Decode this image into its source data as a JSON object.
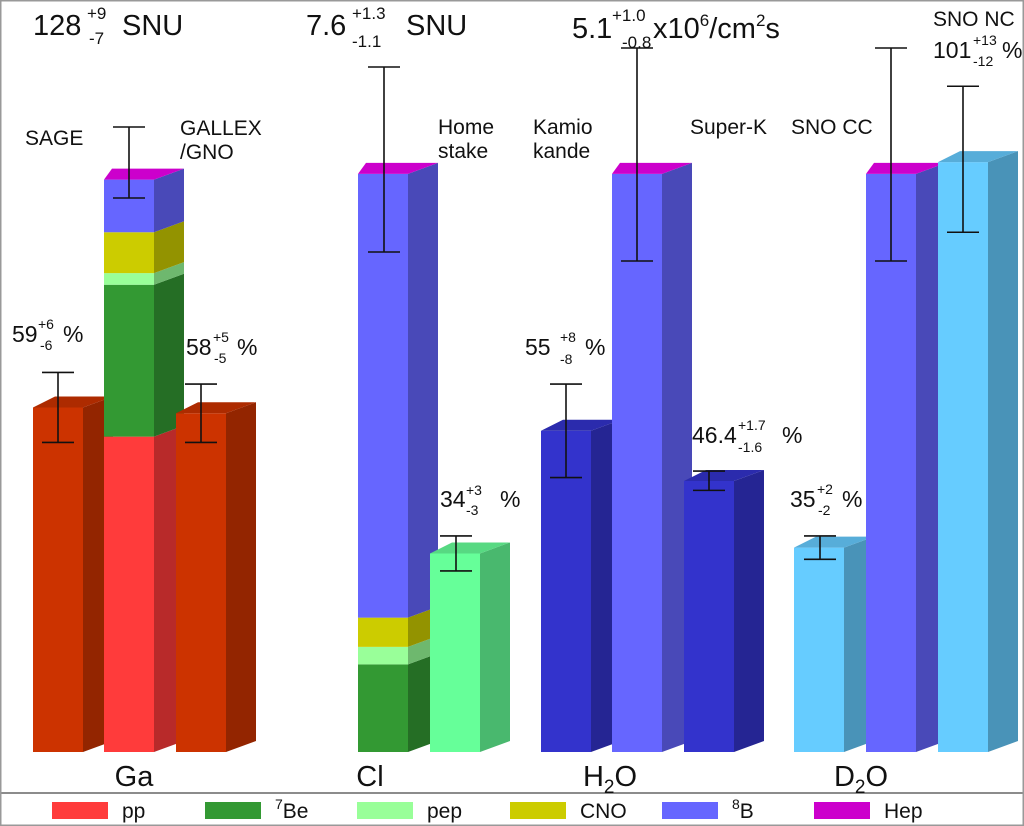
{
  "chart_data": {
    "type": "bar",
    "orientation": "vertical, 3D stacked",
    "groups": [
      {
        "label": "Ga",
        "total": {
          "value": "128",
          "err_up": "+9",
          "err_down": "-7",
          "unit": "SNU"
        },
        "experiments": [
          {
            "name": "SAGE",
            "ratio": {
              "value": "59",
              "err_up": "+6",
              "err_down": "-6",
              "unit": "%"
            },
            "measured_fraction": 0.59
          },
          {
            "name": "GALLEX/GNO",
            "ratio": {
              "value": "58",
              "err_up": "+5",
              "err_down": "-5",
              "unit": "%"
            },
            "measured_fraction": 0.58
          }
        ],
        "prediction_components_fraction": {
          "pp": 0.54,
          "7Be": 0.26,
          "pep": 0.02,
          "CNO": 0.07,
          "8B": 0.09,
          "Hep": 0.02
        }
      },
      {
        "label": "Cl",
        "total": {
          "value": "7.6",
          "err_up": "+1.3",
          "err_down": "-1.1",
          "unit": "SNU"
        },
        "experiments": [
          {
            "name": "Home stake",
            "ratio": {
              "value": "34",
              "err_up": "+3",
              "err_down": "-3",
              "unit": "%"
            },
            "measured_fraction": 0.34
          }
        ],
        "prediction_components_fraction": {
          "7Be": 0.15,
          "pep": 0.03,
          "CNO": 0.05,
          "8B": 0.76,
          "Hep": 0.01
        }
      },
      {
        "label": "H2O",
        "total": {
          "value": "5.1",
          "err_up": "+1.0",
          "err_down": "-0.8",
          "unit": "x10^6/cm^2s"
        },
        "experiments": [
          {
            "name": "Kamiokande",
            "ratio": {
              "value": "55",
              "err_up": "+8",
              "err_down": "-8",
              "unit": "%"
            },
            "measured_fraction": 0.55
          },
          {
            "name": "Super-K",
            "ratio": {
              "value": "46.4",
              "err_up": "+1.7",
              "err_down": "-1.6",
              "unit": "%"
            },
            "measured_fraction": 0.464
          }
        ],
        "prediction_components_fraction": {
          "8B": 0.99,
          "Hep": 0.01
        }
      },
      {
        "label": "D2O",
        "total": null,
        "experiments": [
          {
            "name": "SNO CC",
            "ratio": {
              "value": "35",
              "err_up": "+2",
              "err_down": "-2",
              "unit": "%"
            },
            "measured_fraction": 0.35
          },
          {
            "name": "SNO NC",
            "ratio": {
              "value": "101",
              "err_up": "+13",
              "err_down": "-12",
              "unit": "%"
            },
            "measured_fraction": 1.01
          }
        ],
        "prediction_components_fraction": {
          "8B": 0.99,
          "Hep": 0.01
        }
      }
    ],
    "legend": {
      "placement": "bottom",
      "entries": [
        {
          "key": "pp",
          "label": "pp",
          "color": "#ff3b3b"
        },
        {
          "key": "7Be",
          "label": "Be",
          "sup": "7",
          "color": "#339933"
        },
        {
          "key": "pep",
          "label": "pep",
          "color": "#99ff99"
        },
        {
          "key": "CNO",
          "label": "CNO",
          "color": "#cccc00"
        },
        {
          "key": "8B",
          "label": "B",
          "sup": "8",
          "color": "#6666ff"
        },
        {
          "key": "Hep",
          "label": "Hep",
          "color": "#cc00cc"
        }
      ]
    },
    "colors": {
      "ga_measured": "#cc3300",
      "cl_measured": "#66ff99",
      "h2o_measured": "#3333cc",
      "sno_measured": "#66ccff"
    },
    "grid": false
  }
}
